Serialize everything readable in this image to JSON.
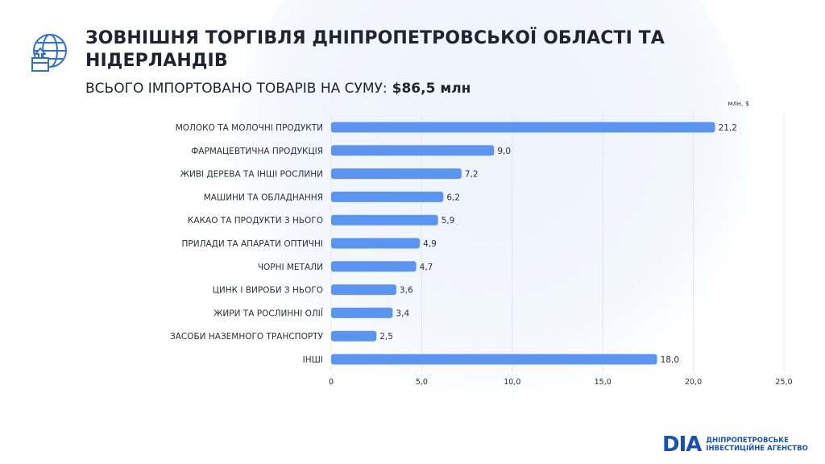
{
  "header": {
    "title": "ЗОВНІШНЯ ТОРГІВЛЯ ДНІПРОПЕТРОВСЬКОЇ ОБЛАСТІ ТА НІДЕРЛАНДІВ",
    "subtitle_label": "ВСЬОГО ІМПОРТОВАНО ТОВАРІВ НА СУМУ:",
    "subtitle_value": "$86,5 млн",
    "icon": "globe-box-icon"
  },
  "chart_data": {
    "type": "bar",
    "orientation": "horizontal",
    "unit_label": "млн, $",
    "categories": [
      "МОЛОКО ТА МОЛОЧНІ ПРОДУКТИ",
      "ФАРМАЦЕВТИЧНА ПРОДУКЦІЯ",
      "ЖИВІ ДЕРЕВА ТА ІНШІ РОСЛИНИ",
      "МАШИНИ ТА ОБЛАДНАННЯ",
      "КАКАО ТА ПРОДУКТИ З НЬОГО",
      "ПРИЛАДИ ТА АПАРАТИ ОПТИЧНІ",
      "ЧОРНІ МЕТАЛИ",
      "ЦИНК І ВИРОБИ З НЬОГО",
      "ЖИРИ ТА РОСЛИННІ ОЛІЇ",
      "ЗАСОБИ НАЗЕМНОГО ТРАНСПОРТУ",
      "ІНШІ"
    ],
    "values": [
      21.2,
      9.0,
      7.2,
      6.2,
      5.9,
      4.9,
      4.7,
      3.6,
      3.4,
      2.5,
      18.0
    ],
    "value_labels": [
      "21,2",
      "9,0",
      "7,2",
      "6,2",
      "5,9",
      "4,9",
      "4,7",
      "3,6",
      "3,4",
      "2,5",
      "18,0"
    ],
    "xlim": [
      0,
      25
    ],
    "x_ticks": [
      0,
      5,
      10,
      15,
      20,
      25
    ],
    "x_tick_labels": [
      "0",
      "5,0",
      "10,0",
      "15,0",
      "20,0",
      "25,0"
    ],
    "grid": true,
    "bar_color": "#5b95f2"
  },
  "logo": {
    "mark": "DIA",
    "line1": "ДНІПРОПЕТРОВСЬКЕ",
    "line2": "ІНВЕСТИЦІЙНЕ АГЕНСТВО"
  }
}
